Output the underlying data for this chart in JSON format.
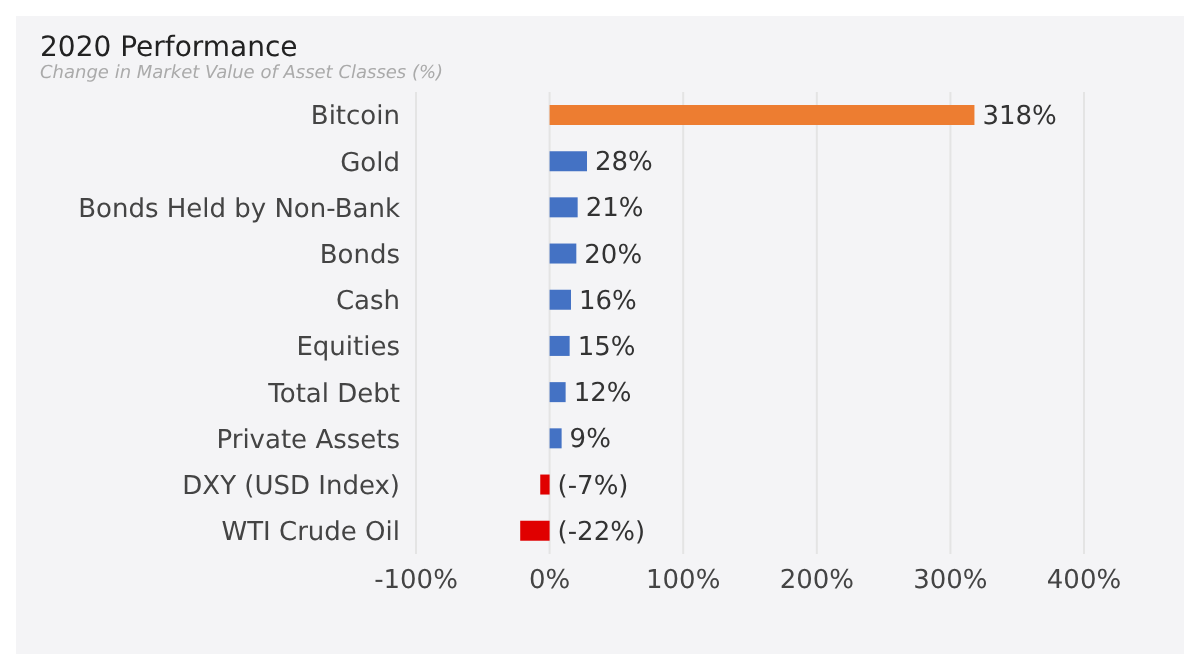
{
  "chart_data": {
    "type": "bar",
    "orientation": "horizontal",
    "title": "2020 Performance",
    "subtitle": "Change in Market Value of Asset Classes (%)",
    "categories": [
      "Bitcoin",
      "Gold",
      "Bonds Held by Non-Bank",
      "Bonds",
      "Cash",
      "Equities",
      "Total Debt",
      "Private Assets",
      "DXY (USD Index)",
      "WTI Crude Oil"
    ],
    "values": [
      318,
      28,
      21,
      20,
      16,
      15,
      12,
      9,
      -7,
      -22
    ],
    "colors": [
      "#ed7d31",
      "#4472c4",
      "#4472c4",
      "#4472c4",
      "#4472c4",
      "#4472c4",
      "#4472c4",
      "#4472c4",
      "#e00000",
      "#e00000"
    ],
    "value_labels": [
      "318%",
      "28%",
      "21%",
      "20%",
      "16%",
      "15%",
      "12%",
      "9%",
      "(-7%)",
      "(-22%)"
    ],
    "xlim": [
      -100,
      400
    ],
    "xticks": [
      {
        "value": -100,
        "label": "-100%"
      },
      {
        "value": 0,
        "label": "0%"
      },
      {
        "value": 100,
        "label": "100%"
      },
      {
        "value": 200,
        "label": "200%"
      },
      {
        "value": 300,
        "label": "300%"
      },
      {
        "value": 400,
        "label": "400%"
      }
    ],
    "grid": "x"
  }
}
